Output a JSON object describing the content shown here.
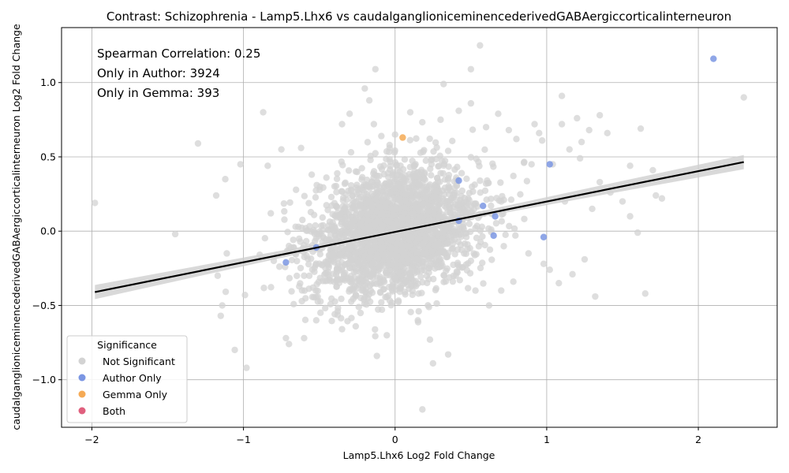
{
  "chart_data": {
    "type": "scatter",
    "title": "Contrast: Schizophrenia - Lamp5.Lhx6 vs caudalganglioniceminencederivedGABAergiccorticalinterneuron",
    "xlabel": "Lamp5.Lhx6 Log2 Fold Change",
    "ylabel": "caudalganglioniceminencederivedGABAergiccorticalinterneuron Log2 Fold Change",
    "xlim": [
      -2.2,
      2.52
    ],
    "ylim": [
      -1.32,
      1.37
    ],
    "x_ticks": [
      -2,
      -1,
      0,
      1,
      2
    ],
    "x_tick_labels": [
      "−2",
      "−1",
      "0",
      "1",
      "2"
    ],
    "y_ticks": [
      -1.0,
      -0.5,
      0.0,
      0.5,
      1.0
    ],
    "y_tick_labels": [
      "−1.0",
      "−0.5",
      "0.0",
      "0.5",
      "1.0"
    ],
    "grid": true,
    "annotations": [
      "Spearman Correlation: 0.25",
      "Only in Author: 3924",
      "Only in Gemma: 393"
    ],
    "legend": {
      "title": "Significance",
      "placement": "lower-left",
      "entries": [
        {
          "label": "Not Significant",
          "color": "#d3d3d3"
        },
        {
          "label": "Author Only",
          "color": "#7b96e3"
        },
        {
          "label": "Gemma Only",
          "color": "#f5aa55"
        },
        {
          "label": "Both",
          "color": "#e0607e"
        }
      ]
    },
    "regression_line": {
      "x": [
        -1.98,
        2.3
      ],
      "y": [
        -0.41,
        0.465
      ],
      "color": "#000000",
      "band_color": "#cfcfcf"
    },
    "series": [
      {
        "name": "Not Significant",
        "color": "#d3d3d3",
        "cloud_center": [
          0.0,
          0.0
        ],
        "points": [
          [
            -1.98,
            0.19
          ],
          [
            -1.45,
            -0.02
          ],
          [
            -1.3,
            0.59
          ],
          [
            -1.18,
            0.24
          ],
          [
            -1.12,
            0.35
          ],
          [
            -1.11,
            -0.15
          ],
          [
            -1.17,
            -0.3
          ],
          [
            -1.14,
            -0.5
          ],
          [
            -1.15,
            -0.57
          ],
          [
            -1.02,
            0.45
          ],
          [
            -0.99,
            -0.43
          ],
          [
            -0.98,
            -0.92
          ],
          [
            -0.87,
            0.8
          ],
          [
            -0.84,
            0.44
          ],
          [
            -0.82,
            0.12
          ],
          [
            -0.75,
            0.55
          ],
          [
            -0.72,
            -0.72
          ],
          [
            -0.7,
            -0.76
          ],
          [
            -0.62,
            0.56
          ],
          [
            -0.6,
            -0.72
          ],
          [
            -0.55,
            0.38
          ],
          [
            -0.52,
            -0.6
          ],
          [
            -0.35,
            0.72
          ],
          [
            -0.3,
            0.79
          ],
          [
            -0.2,
            0.96
          ],
          [
            -0.17,
            0.88
          ],
          [
            -0.14,
            0.72
          ],
          [
            -0.13,
            1.09
          ],
          [
            -0.12,
            -0.84
          ],
          [
            -0.35,
            -0.66
          ],
          [
            0.0,
            0.65
          ],
          [
            0.1,
            0.8
          ],
          [
            0.15,
            -0.6
          ],
          [
            0.18,
            -1.2
          ],
          [
            0.23,
            -0.73
          ],
          [
            0.25,
            -0.89
          ],
          [
            0.3,
            0.75
          ],
          [
            0.32,
            0.99
          ],
          [
            0.35,
            -0.83
          ],
          [
            0.35,
            0.54
          ],
          [
            0.42,
            0.81
          ],
          [
            0.5,
            0.86
          ],
          [
            0.5,
            1.09
          ],
          [
            0.53,
            -0.4
          ],
          [
            0.56,
            1.25
          ],
          [
            0.6,
            0.7
          ],
          [
            0.62,
            -0.5
          ],
          [
            0.68,
            0.79
          ],
          [
            0.7,
            -0.4
          ],
          [
            0.75,
            0.68
          ],
          [
            0.78,
            -0.34
          ],
          [
            0.8,
            0.62
          ],
          [
            0.85,
            0.46
          ],
          [
            0.88,
            -0.15
          ],
          [
            0.9,
            0.45
          ],
          [
            0.92,
            0.72
          ],
          [
            0.95,
            0.66
          ],
          [
            0.97,
            0.61
          ],
          [
            0.98,
            -0.22
          ],
          [
            1.02,
            -0.26
          ],
          [
            1.04,
            0.45
          ],
          [
            1.08,
            -0.35
          ],
          [
            1.1,
            0.91
          ],
          [
            1.1,
            0.72
          ],
          [
            1.12,
            0.2
          ],
          [
            1.15,
            0.55
          ],
          [
            1.17,
            -0.29
          ],
          [
            1.2,
            0.76
          ],
          [
            1.22,
            0.49
          ],
          [
            1.23,
            0.6
          ],
          [
            1.25,
            -0.19
          ],
          [
            1.28,
            0.68
          ],
          [
            1.3,
            0.15
          ],
          [
            1.32,
            -0.44
          ],
          [
            1.35,
            0.33
          ],
          [
            1.35,
            0.78
          ],
          [
            1.4,
            0.66
          ],
          [
            1.42,
            0.26
          ],
          [
            1.5,
            0.2
          ],
          [
            1.55,
            0.44
          ],
          [
            1.55,
            0.1
          ],
          [
            1.6,
            -0.01
          ],
          [
            1.62,
            0.69
          ],
          [
            1.65,
            -0.42
          ],
          [
            1.7,
            0.41
          ],
          [
            1.72,
            0.24
          ],
          [
            1.76,
            0.22
          ],
          [
            2.3,
            0.9
          ],
          [
            0.6,
            0.32
          ],
          [
            0.7,
            0.2
          ],
          [
            -0.6,
            -0.3
          ],
          [
            -0.7,
            -0.1
          ],
          [
            -0.8,
            -0.2
          ],
          [
            0.4,
            -0.3
          ],
          [
            0.5,
            -0.2
          ]
        ]
      },
      {
        "name": "Author Only",
        "color": "#7b96e3",
        "points": [
          [
            2.1,
            1.16
          ],
          [
            1.02,
            0.45
          ],
          [
            0.98,
            -0.04
          ],
          [
            0.58,
            0.17
          ],
          [
            0.66,
            0.1
          ],
          [
            0.42,
            0.34
          ],
          [
            0.65,
            -0.03
          ],
          [
            0.42,
            0.07
          ],
          [
            -0.72,
            -0.21
          ],
          [
            -0.52,
            -0.11
          ]
        ]
      },
      {
        "name": "Gemma Only",
        "color": "#f5aa55",
        "points": [
          [
            0.05,
            0.63
          ]
        ]
      },
      {
        "name": "Both",
        "color": "#e0607e",
        "points": []
      }
    ]
  }
}
